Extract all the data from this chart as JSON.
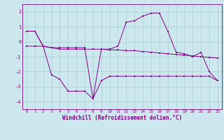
{
  "xlabel": "Windchill (Refroidissement éolien,°C)",
  "background_color": "#cce8ee",
  "line_color": "#800080",
  "grid_color": "#aaccd4",
  "hours": [
    0,
    1,
    2,
    3,
    4,
    5,
    6,
    7,
    8,
    9,
    10,
    11,
    12,
    13,
    14,
    15,
    16,
    17,
    18,
    19,
    20,
    21,
    22,
    23
  ],
  "series1": [
    0.7,
    0.7,
    -0.3,
    -2.2,
    -2.5,
    -3.3,
    -3.3,
    -3.3,
    -3.8,
    -2.6,
    -2.3,
    -2.3,
    -2.3,
    -2.3,
    -2.3,
    -2.3,
    -2.3,
    -2.3,
    -2.3,
    -2.3,
    -2.3,
    -2.3,
    -2.3,
    -2.6
  ],
  "series2": [
    0.7,
    0.7,
    -0.3,
    -0.4,
    -0.4,
    -0.4,
    -0.4,
    -0.4,
    -3.8,
    -0.5,
    -0.5,
    -0.3,
    1.3,
    1.4,
    1.7,
    1.9,
    1.9,
    0.7,
    -0.7,
    -0.8,
    -1.0,
    -0.7,
    -2.0,
    -2.6
  ],
  "series3": [
    -0.3,
    -0.3,
    -0.3,
    -0.4,
    -0.5,
    -0.5,
    -0.5,
    -0.5,
    -0.5,
    -0.5,
    -0.55,
    -0.55,
    -0.6,
    -0.6,
    -0.65,
    -0.7,
    -0.75,
    -0.8,
    -0.85,
    -0.9,
    -0.95,
    -1.0,
    -1.05,
    -1.1
  ],
  "ylim": [
    -4.5,
    2.5
  ],
  "yticks": [
    -4,
    -3,
    -2,
    -1,
    0,
    1,
    2
  ],
  "xlim": [
    -0.5,
    23.5
  ]
}
